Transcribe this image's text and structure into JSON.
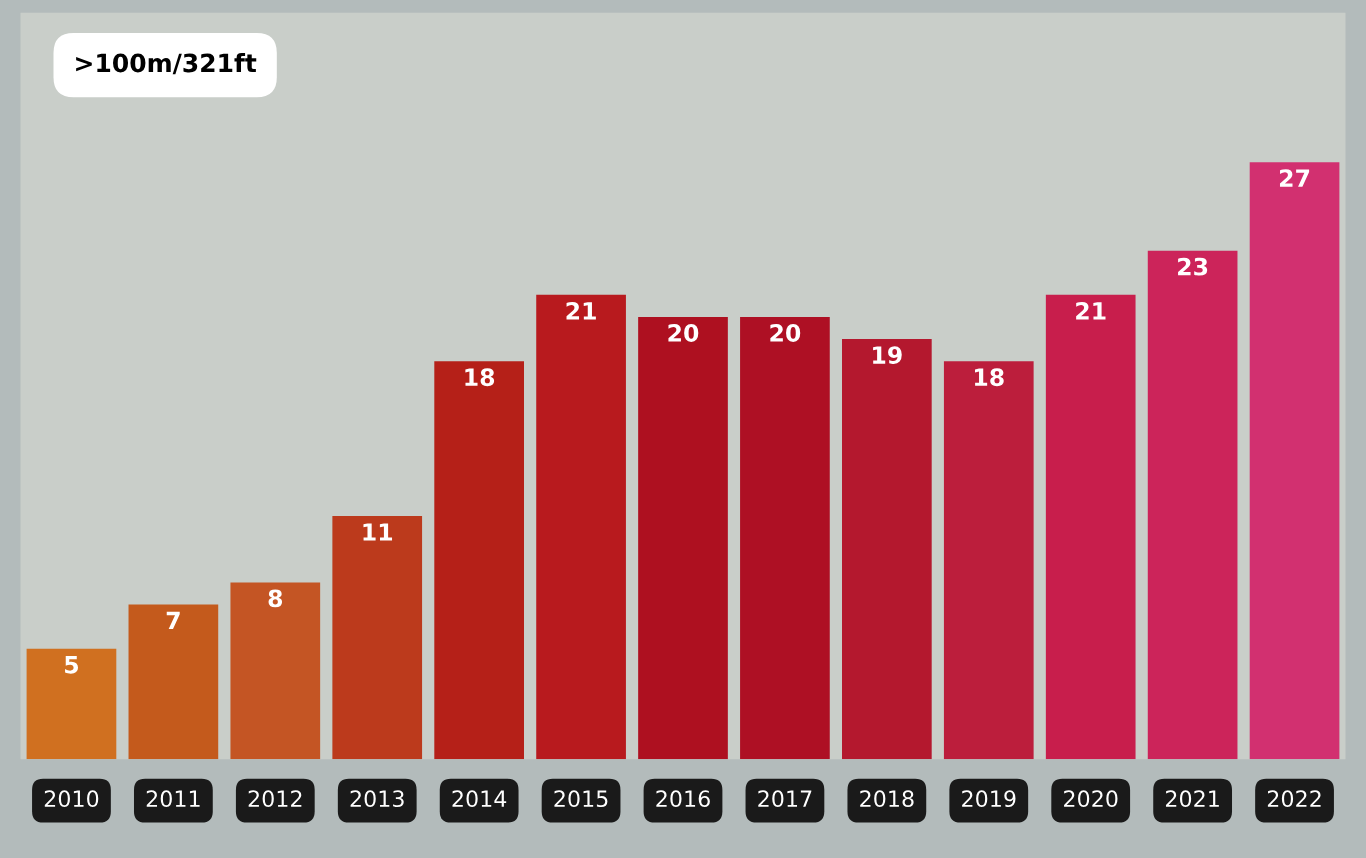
{
  "chart_data": {
    "type": "bar",
    "title": ">100m/321ft",
    "categories": [
      "2010",
      "2011",
      "2012",
      "2013",
      "2014",
      "2015",
      "2016",
      "2017",
      "2018",
      "2019",
      "2020",
      "2021",
      "2022"
    ],
    "values": [
      5,
      7,
      8,
      11,
      18,
      21,
      20,
      20,
      19,
      18,
      21,
      23,
      27
    ],
    "colors": [
      "#d07020",
      "#c45a1c",
      "#c45524",
      "#bc3a1c",
      "#b52018",
      "#b81a1e",
      "#ae1020",
      "#ae1024",
      "#b4182e",
      "#bc1e3c",
      "#c81e4c",
      "#cc245a",
      "#d23070"
    ],
    "data_labels": true,
    "grid": false,
    "legend": false
  }
}
